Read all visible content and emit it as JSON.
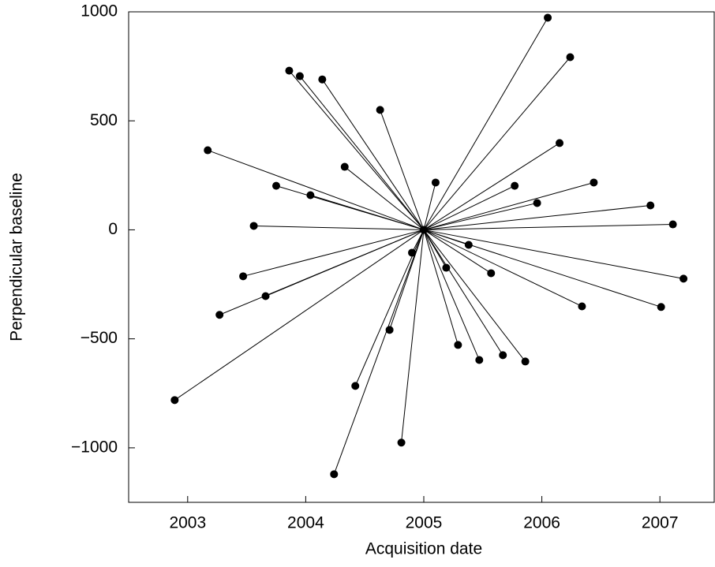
{
  "chart_data": {
    "type": "scatter",
    "x_label": "Acquisition date",
    "y_label": "Perpendicular baseline",
    "master": {
      "x": 2005,
      "y": 0
    },
    "x": [
      2006.05,
      2006.24,
      2003.86,
      2003.95,
      2004.14,
      2004.63,
      2003.17,
      2006.15,
      2004.33,
      2005.1,
      2006.44,
      2003.75,
      2005.77,
      2004.04,
      2005.96,
      2006.92,
      2003.56,
      2007.11,
      2005.38,
      2004.9,
      2005.19,
      2003.47,
      2005.57,
      2007.2,
      2003.66,
      2006.34,
      2007.01,
      2003.27,
      2004.71,
      2005.29,
      2005.47,
      2005.67,
      2005.86,
      2004.42,
      2002.89,
      2004.81,
      2004.24
    ],
    "y": [
      973,
      792,
      730,
      705,
      690,
      550,
      365,
      398,
      289,
      217,
      217,
      202,
      202,
      159,
      123,
      112,
      18,
      25,
      -69,
      -105,
      -174,
      -213,
      -199,
      -224,
      -304,
      -351,
      -354,
      -390,
      -459,
      -528,
      -597,
      -575,
      -604,
      -716,
      -781,
      -976,
      -1121
    ],
    "color": "#000000",
    "xlim": [
      2002.5,
      2007.46
    ],
    "ylim": [
      -1250,
      1000
    ],
    "xticks": [
      2003,
      2004,
      2005,
      2006,
      2007
    ],
    "yticks": [
      {
        "value": -1000,
        "label": "−1000"
      },
      {
        "value": -500,
        "label": "−500"
      },
      0,
      500,
      1000
    ]
  }
}
